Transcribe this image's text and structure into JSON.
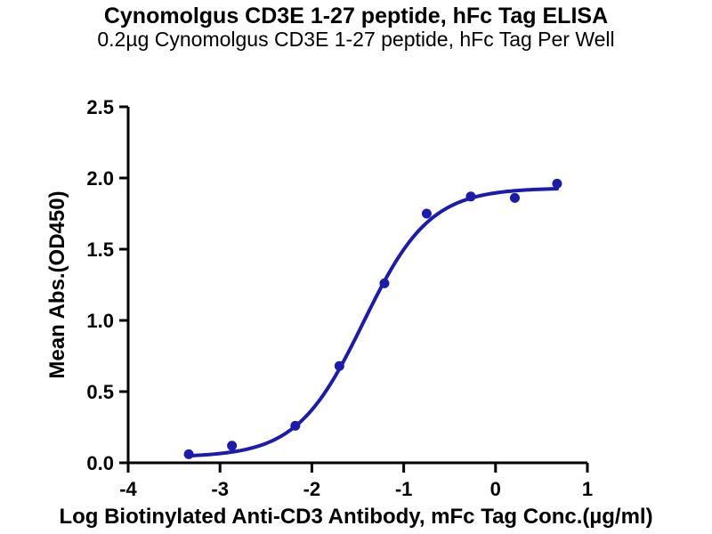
{
  "page": {
    "background": "#ffffff"
  },
  "chart_data": {
    "type": "scatter",
    "title": "Cynomolgus CD3E 1-27 peptide, hFc Tag ELISA",
    "subtitle": "0.2µg Cynomolgus CD3E 1-27 peptide, hFc Tag Per Well",
    "xlabel": "Log Biotinylated Anti-CD3 Antibody, mFc Tag Conc.(µg/ml)",
    "ylabel": "Mean Abs.(OD450)",
    "xlim": [
      -4,
      1
    ],
    "ylim": [
      0.0,
      2.5
    ],
    "x_ticks": {
      "values": [
        -4,
        -3,
        -2,
        -1,
        0,
        1
      ],
      "labels": [
        "-4",
        "-3",
        "-2",
        "-1",
        "0",
        "1"
      ]
    },
    "y_ticks": {
      "values": [
        0.0,
        0.5,
        1.0,
        1.5,
        2.0,
        2.5
      ],
      "labels": [
        "0.0",
        "0.5",
        "1.0",
        "1.5",
        "2.0",
        "2.5"
      ]
    },
    "grid": false,
    "legend": "none",
    "axis_color": "#000000",
    "series": [
      {
        "name": "Biotinylated Anti-CD3 Antibody, mFc Tag",
        "marker": "circle",
        "color": "#1b1bb0",
        "points": [
          {
            "x": -3.34,
            "y": 0.06
          },
          {
            "x": -2.87,
            "y": 0.12
          },
          {
            "x": -2.18,
            "y": 0.26
          },
          {
            "x": -1.7,
            "y": 0.68
          },
          {
            "x": -1.21,
            "y": 1.26
          },
          {
            "x": -0.75,
            "y": 1.75
          },
          {
            "x": -0.27,
            "y": 1.87
          },
          {
            "x": 0.21,
            "y": 1.86
          },
          {
            "x": 0.67,
            "y": 1.96
          }
        ],
        "fit_curve": {
          "model": "4PL",
          "bottom": 0.04,
          "top": 1.93,
          "logEC50": -1.44,
          "hillslope": 1.2,
          "x_start": -3.34,
          "x_end": 0.67
        }
      }
    ]
  }
}
